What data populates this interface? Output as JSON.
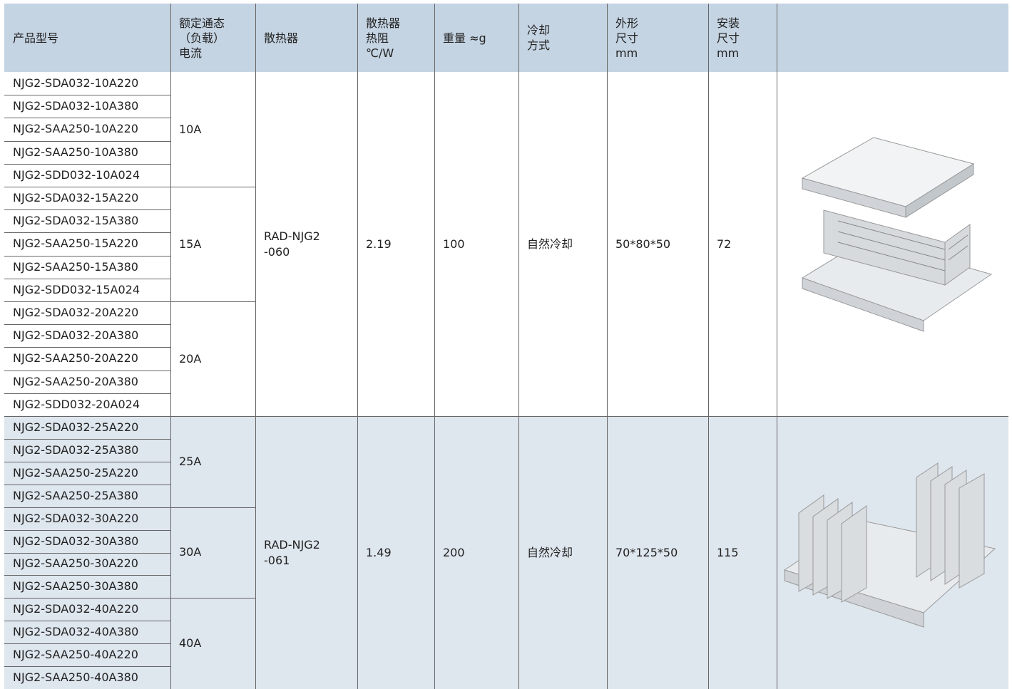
{
  "header": [
    [
      "产品型号"
    ],
    [
      "额定通态",
      "（负载）",
      "电流"
    ],
    [
      "散热器"
    ],
    [
      "散热器",
      "热阻",
      "℃/W"
    ],
    [
      "重量 ≈g"
    ],
    [
      "冷却",
      "方式"
    ],
    [
      "外形",
      "尺寸",
      "mm"
    ],
    [
      "安装",
      "尺寸",
      "mm"
    ]
  ],
  "groups": [
    {
      "radiator": [
        "RAD-NJG2",
        "-060"
      ],
      "resistance": "2.19",
      "weight": "100",
      "cooling": "自然冷却",
      "size": "50*80*50",
      "mount": "72",
      "currents": [
        {
          "current": "10A",
          "models": [
            "NJG2-SDA032-10A220",
            "NJG2-SDA032-10A380",
            "NJG2-SAA250-10A220",
            "NJG2-SAA250-10A380",
            "NJG2-SDD032-10A024"
          ]
        },
        {
          "current": "15A",
          "models": [
            "NJG2-SDA032-15A220",
            "NJG2-SDA032-15A380",
            "NJG2-SAA250-15A220",
            "NJG2-SAA250-15A380",
            "NJG2-SDD032-15A024"
          ]
        },
        {
          "current": "20A",
          "models": [
            "NJG2-SDA032-20A220",
            "NJG2-SDA032-20A380",
            "NJG2-SAA250-20A220",
            "NJG2-SAA250-20A380",
            "NJG2-SDD032-20A024"
          ]
        }
      ]
    },
    {
      "radiator": [
        "RAD-NJG2",
        "-061"
      ],
      "resistance": "1.49",
      "weight": "200",
      "cooling": "自然冷却",
      "size": "70*125*50",
      "mount": "115",
      "currents": [
        {
          "current": "25A",
          "models": [
            "NJG2-SDA032-25A220",
            "NJG2-SDA032-25A380",
            "NJG2-SAA250-25A220",
            "NJG2-SAA250-25A380"
          ]
        },
        {
          "current": "30A",
          "models": [
            "NJG2-SDA032-30A220",
            "NJG2-SDA032-30A380",
            "NJG2-SAA250-30A220",
            "NJG2-SAA250-30A380"
          ]
        },
        {
          "current": "40A",
          "models": [
            "NJG2-SDA032-40A220",
            "NJG2-SDA032-40A380",
            "NJG2-SAA250-40A220",
            "NJG2-SAA250-40A380"
          ]
        }
      ]
    }
  ]
}
